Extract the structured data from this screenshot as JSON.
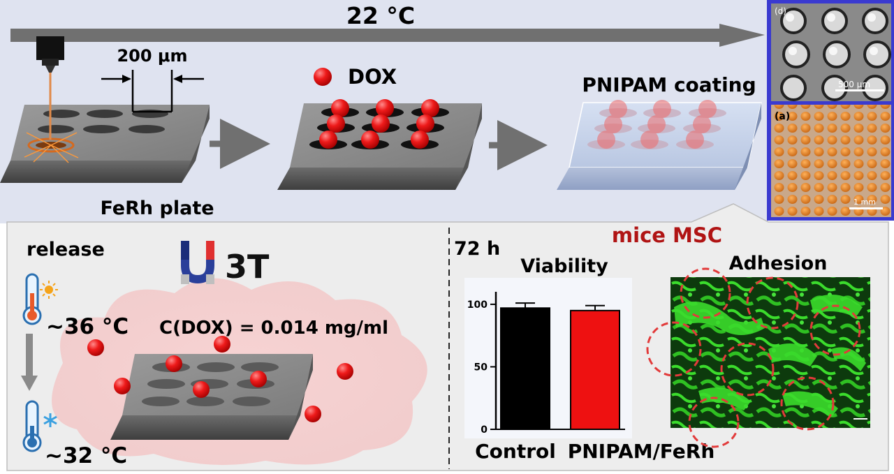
{
  "top": {
    "temperature": "22 °C",
    "dimension": "200 μm",
    "plate_label": "FeRh plate",
    "dox_label": "DOX",
    "coating_label": "PNIPAM coating"
  },
  "micrographs": {
    "top_panel_label": "(d)",
    "top_scale": "500 μm",
    "bottom_panel_label": "(a)",
    "bottom_scale": "1 mm"
  },
  "release": {
    "title": "release",
    "field": "3T",
    "temp_high": "~36 °C",
    "temp_low": "~32 °C",
    "concentration": "C(DOX) = 0.014  mg/ml"
  },
  "results": {
    "time": "72 h",
    "group": "mice MSC",
    "viability_title": "Viability",
    "adhesion_title": "Adhesion"
  },
  "colors": {
    "background_top": "#dfe3f0",
    "background_bottom": "#ededed",
    "dox_red": "#e01010",
    "group_title": "#b01414",
    "micrograph_border": "#3a3ad0",
    "control_bar": "#000000",
    "pnipam_bar": "#ee1111",
    "adhesion_green": "#3bdc2c"
  },
  "icons": [
    "laser-icon",
    "magnet-icon",
    "thermometer-icon",
    "sun-icon",
    "snowflake-icon",
    "arrow-icon"
  ],
  "chart_data": {
    "type": "bar",
    "title": "Viability",
    "categories": [
      "Control",
      "PNIPAM/FeRh"
    ],
    "values": [
      97,
      95
    ],
    "errors": [
      4,
      4
    ],
    "bar_colors": [
      "#000000",
      "#ee1111"
    ],
    "yticks": [
      0,
      50,
      100
    ],
    "ylim": [
      0,
      110
    ],
    "xlabel": "",
    "ylabel": "",
    "grid": false
  }
}
